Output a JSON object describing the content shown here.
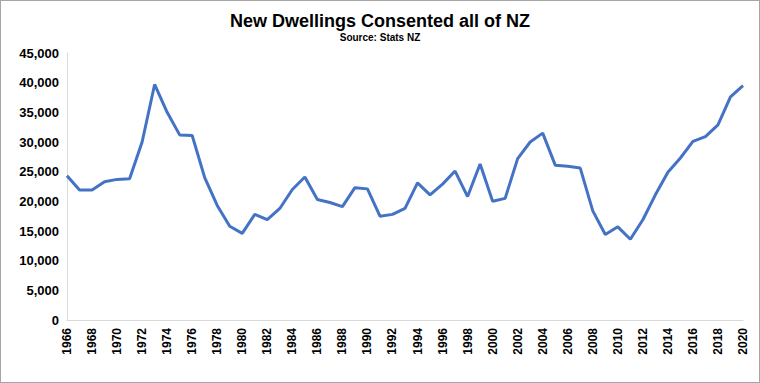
{
  "chart_data": {
    "type": "line",
    "title": "New Dwellings Consented all of NZ",
    "subtitle": "Source: Stats NZ",
    "categories": [
      "1966",
      null,
      "1968",
      null,
      "1970",
      null,
      "1972",
      null,
      "1974",
      null,
      "1976",
      null,
      "1978",
      null,
      "1980",
      null,
      "1982",
      null,
      "1984",
      null,
      "1986",
      null,
      "1988",
      null,
      "1990",
      null,
      "1992",
      null,
      "1994",
      null,
      "1996",
      null,
      "1998",
      null,
      "2000",
      null,
      "2002",
      null,
      "2004",
      null,
      "2006",
      null,
      "2008",
      null,
      "2010",
      null,
      "2012",
      null,
      "2014",
      null,
      "2016",
      null,
      "2018",
      null,
      "2020"
    ],
    "values": [
      24300,
      21900,
      21900,
      23300,
      23700,
      23800,
      30000,
      39700,
      35000,
      31200,
      31100,
      24000,
      19300,
      15800,
      14600,
      17800,
      16900,
      18800,
      22000,
      24100,
      20300,
      19800,
      19100,
      22300,
      22100,
      17500,
      17800,
      18800,
      23100,
      21100,
      22900,
      25100,
      20800,
      26300,
      20000,
      20500,
      27200,
      30000,
      31500,
      26100,
      25900,
      25600,
      18400,
      14400,
      15700,
      13600,
      16900,
      21100,
      24900,
      27300,
      30100,
      30900,
      32900,
      37600,
      39500
    ],
    "color": "#4472c4",
    "ylim": [
      0,
      45000
    ],
    "yticks": [
      0,
      {
        "value": 5000,
        "label": "5,000"
      },
      {
        "value": 10000,
        "label": "10,000"
      },
      {
        "value": 15000,
        "label": "15,000"
      },
      {
        "value": 20000,
        "label": "20,000"
      },
      {
        "value": 25000,
        "label": "25,000"
      },
      {
        "value": 30000,
        "label": "30,000"
      },
      {
        "value": 35000,
        "label": "35,000"
      },
      {
        "value": 40000,
        "label": "40,000"
      },
      {
        "value": 45000,
        "label": "45,000"
      }
    ],
    "grid": false
  }
}
